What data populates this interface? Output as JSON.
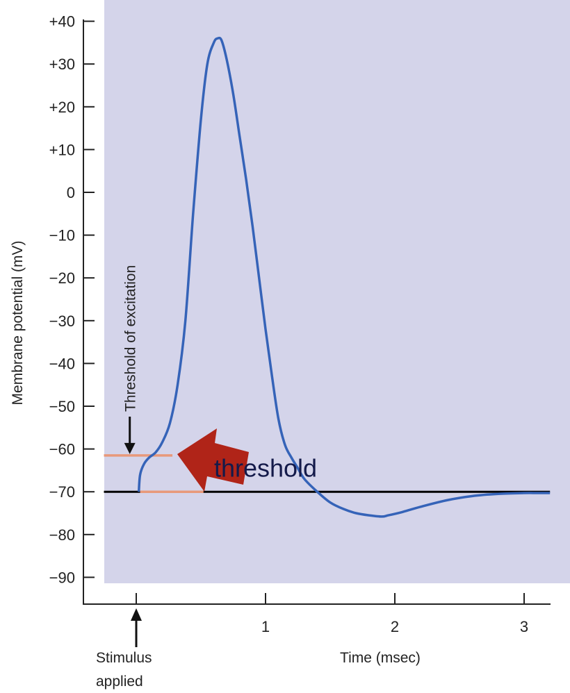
{
  "chart_data": {
    "type": "line",
    "xlabel": "Time (msec)",
    "ylabel": "Membrane potential (mV)",
    "xlim": [
      -0.4,
      3.2
    ],
    "ylim": [
      -90,
      40
    ],
    "x_ticks": [
      0,
      1,
      2,
      3
    ],
    "x_tick_labels": [
      "",
      "1",
      "2",
      "3"
    ],
    "y_ticks": [
      40,
      30,
      20,
      10,
      0,
      -10,
      -20,
      -30,
      -40,
      -50,
      -60,
      -70,
      -80,
      -90
    ],
    "y_tick_labels": [
      "+40",
      "+30",
      "+20",
      "+10",
      "0",
      "−10",
      "−20",
      "−30",
      "−40",
      "−50",
      "−60",
      "−70",
      "−80",
      "−90"
    ],
    "grid": false,
    "series": [
      {
        "color": "#3563b8",
        "x": [
          0.02,
          0.03,
          0.06,
          0.1,
          0.15,
          0.2,
          0.26,
          0.32,
          0.38,
          0.44,
          0.5,
          0.55,
          0.6,
          0.63,
          0.66,
          0.7,
          0.75,
          0.8,
          0.85,
          0.9,
          0.95,
          1.0,
          1.05,
          1.1,
          1.15,
          1.2,
          1.25,
          1.3,
          1.4,
          1.5,
          1.6,
          1.7,
          1.8,
          1.9,
          1.95,
          2.05,
          2.2,
          2.4,
          2.6,
          2.8,
          3.0,
          3.1,
          3.2
        ],
        "y": [
          -70,
          -66,
          -63.5,
          -62,
          -60.8,
          -58.5,
          -54,
          -45,
          -30,
          -5,
          17,
          30,
          35,
          36,
          35.5,
          31,
          23,
          13,
          3,
          -8,
          -20,
          -32,
          -43,
          -53,
          -59,
          -62,
          -64.5,
          -67,
          -70,
          -72.5,
          -74,
          -75,
          -75.5,
          -75.8,
          -75.5,
          -74.8,
          -73.5,
          -72,
          -71,
          -70.5,
          -70.3,
          -70.3,
          -70.3
        ]
      }
    ],
    "reference_lines": [
      {
        "name": "resting",
        "y": -70,
        "x_from": -0.25,
        "x_to": 3.2,
        "color": "#000000"
      },
      {
        "name": "threshold",
        "y": -61.5,
        "x_from": -0.25,
        "x_to": 0.28,
        "color": "#e8997a"
      },
      {
        "name": "threshold-base",
        "y": -70,
        "x_from": 0.03,
        "x_to": 0.52,
        "color": "#e8997a"
      }
    ],
    "annotations": [
      {
        "id": "threshold-of-excitation",
        "text": "Threshold of excitation",
        "x": -0.05,
        "arrow_to_y": -61.5
      },
      {
        "id": "stimulus-applied",
        "text_lines": [
          "Stimulus",
          "applied"
        ],
        "x": 0
      },
      {
        "id": "threshold-label",
        "text": "threshold",
        "x": 1.0,
        "y": -66.5
      }
    ],
    "colors": {
      "plot_background": "#d4d4ea",
      "callout_arrow": "#b02418"
    }
  }
}
